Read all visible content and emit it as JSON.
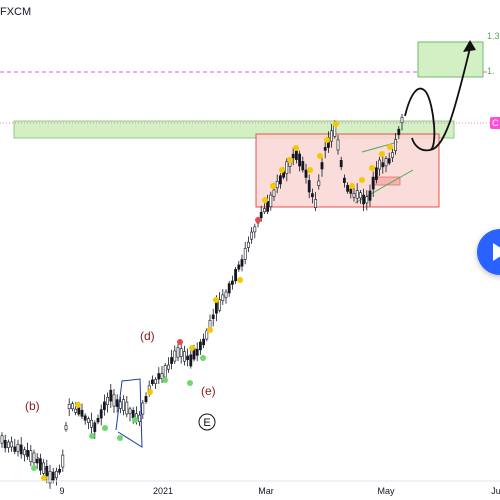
{
  "broker": "FXCM",
  "price_labels": {
    "top_target": "1.3",
    "mid_target": "1.",
    "current_tag": "C"
  },
  "wave_labels": {
    "b": "(b)",
    "d": "(d)",
    "e": "(e)",
    "E": "E"
  },
  "colors": {
    "up": "#131722",
    "down": "#131722",
    "green_zone": "#b9e3a6",
    "red_zone": "#f7c6c4",
    "wave_label": "#8b1a1a",
    "dashed_line": "#ff4fd8",
    "dot_yellow": "#f5c800",
    "dot_green": "#6dd96d",
    "dot_red": "#e84a4a",
    "play_button": "#2962ff"
  },
  "icons": {
    "play": "play-icon"
  },
  "chart_data": {
    "type": "candlestick",
    "x_tick_labels": [
      "9",
      "2021",
      "Mar",
      "May",
      "Ju"
    ],
    "trend": "uptrend with consolidation box and projected breakout",
    "dashed_line_color": "#ff4fd8"
  }
}
